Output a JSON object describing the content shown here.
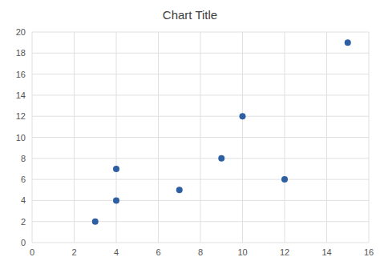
{
  "chart_data": {
    "type": "scatter",
    "title": "Chart Title",
    "x": [
      3,
      4,
      4,
      7,
      9,
      10,
      12,
      15
    ],
    "values": [
      2,
      7,
      4,
      5,
      8,
      12,
      6,
      19
    ],
    "color": "#2e5fa3",
    "xlim": [
      0,
      16
    ],
    "xticks": [
      0,
      2,
      4,
      6,
      8,
      10,
      12,
      14,
      16
    ],
    "ylim": [
      0,
      20
    ],
    "yticks": [
      0,
      2,
      4,
      6,
      8,
      10,
      12,
      14,
      16,
      18,
      20
    ],
    "grid": true
  }
}
